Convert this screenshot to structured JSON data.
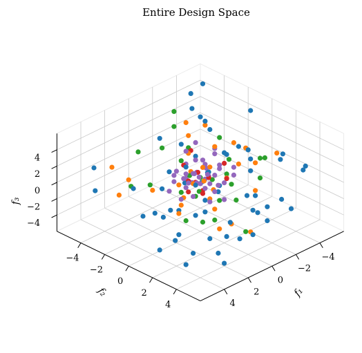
{
  "chart_data": {
    "type": "scatter",
    "title": "Entire Design Space",
    "xlabel": "f₁",
    "ylabel": "f₂",
    "zlabel": "f₃",
    "xlim": [
      -6,
      6
    ],
    "ylim": [
      -6,
      6
    ],
    "zlim": [
      -6,
      6
    ],
    "xticks": [
      "−4",
      "−2",
      "0",
      "2",
      "4"
    ],
    "yticks": [
      "−4",
      "−2",
      "0",
      "2",
      "4"
    ],
    "zticks": [
      "−4",
      "−2",
      "0",
      "2",
      "4"
    ],
    "grid": true,
    "series": [
      {
        "color": "#1f77b4",
        "points": [
          [
            -5.2,
            -1.0,
            4.4
          ],
          [
            -3.6,
            -4.4,
            5.2
          ],
          [
            -4.8,
            -4.6,
            5.4
          ],
          [
            -2.5,
            -3.2,
            5.0
          ],
          [
            -1.4,
            -1.0,
            5.8
          ],
          [
            -3.2,
            -2.4,
            2.5
          ],
          [
            -4.5,
            2.4,
            2.0
          ],
          [
            -4.4,
            4.4,
            2.0
          ],
          [
            -2.8,
            3.9,
            3.6
          ],
          [
            -1.8,
            5.0,
            0.2
          ],
          [
            -0.2,
            5.4,
            -1.0
          ],
          [
            2.3,
            5.6,
            -1.3
          ],
          [
            4.3,
            5.8,
            -1.5
          ],
          [
            5.5,
            3.4,
            -0.8
          ],
          [
            5.6,
            0.8,
            0.4
          ],
          [
            4.6,
            -1.0,
            1.8
          ],
          [
            5.4,
            -3.4,
            0.4
          ],
          [
            3.9,
            -5.0,
            1.0
          ],
          [
            -3.4,
            5.2,
            2.8
          ],
          [
            -1.4,
            4.2,
            -1.0
          ],
          [
            1.0,
            3.5,
            -1.7
          ],
          [
            3.4,
            4.2,
            -1.5
          ],
          [
            4.0,
            2.2,
            -2.0
          ],
          [
            2.2,
            1.8,
            -1.2
          ],
          [
            1.0,
            -2.4,
            4.4
          ],
          [
            -0.8,
            -2.4,
            2.4
          ],
          [
            -4.8,
            -4.8,
            1.2
          ],
          [
            0.9,
            5.3,
            1.0
          ],
          [
            3.3,
            0.8,
            -0.5
          ],
          [
            2.3,
            -0.8,
            -3.2
          ],
          [
            -3.4,
            0.6,
            2.0
          ],
          [
            -2.4,
            1.8,
            1.0
          ],
          [
            -1.8,
            0.2,
            2.5
          ],
          [
            -1.0,
            -1.4,
            1.5
          ],
          [
            0.6,
            -2.0,
            0.3
          ],
          [
            1.8,
            -1.4,
            -0.5
          ],
          [
            2.8,
            -1.0,
            -2.5
          ],
          [
            -2.0,
            2.6,
            -1.2
          ],
          [
            -1.2,
            3.6,
            -2.0
          ],
          [
            0.2,
            4.6,
            -3.0
          ],
          [
            1.6,
            3.8,
            -2.8
          ],
          [
            3.6,
            3.0,
            -4.0
          ],
          [
            5.0,
            1.6,
            -3.6
          ],
          [
            4.6,
            3.4,
            -4.4
          ],
          [
            2.6,
            4.6,
            -4.8
          ],
          [
            -4.2,
            3.4,
            -3.8
          ],
          [
            -2.5,
            1.4,
            -2.4
          ],
          [
            -5.4,
            -2.2,
            -1.0
          ],
          [
            -4.4,
            -0.2,
            -0.4
          ],
          [
            0.8,
            1.2,
            -2.2
          ],
          [
            -0.8,
            0.8,
            -0.4
          ],
          [
            0.3,
            0.4,
            0.5
          ],
          [
            0.4,
            -0.8,
            1.6
          ],
          [
            -0.4,
            0.3,
            1.2
          ],
          [
            1.0,
            0.6,
            0.8
          ],
          [
            -1.0,
            -0.4,
            0.2
          ],
          [
            0.7,
            -0.6,
            0.0
          ],
          [
            -0.5,
            1.0,
            -0.8
          ],
          [
            1.2,
            1.6,
            -0.2
          ],
          [
            2.2,
            0.4,
            -1.6
          ],
          [
            -2.8,
            -0.6,
            1.0
          ]
        ]
      },
      {
        "color": "#ff7f0e",
        "points": [
          [
            -4.4,
            -1.6,
            0.6
          ],
          [
            -1.6,
            -2.8,
            4.2
          ],
          [
            -2.6,
            -2.2,
            3.6
          ],
          [
            -1.0,
            -2.0,
            3.6
          ],
          [
            -4.6,
            1.8,
            1.6
          ],
          [
            -3.0,
            1.6,
            1.4
          ],
          [
            -1.6,
            3.0,
            0.0
          ],
          [
            0.2,
            4.4,
            -2.8
          ],
          [
            2.2,
            0.6,
            -0.8
          ],
          [
            2.4,
            -1.6,
            -0.4
          ],
          [
            3.8,
            -3.6,
            2.0
          ],
          [
            3.2,
            -2.8,
            0.6
          ],
          [
            5.2,
            -1.6,
            1.0
          ],
          [
            -2.0,
            -0.8,
            2.4
          ],
          [
            -0.6,
            -1.6,
            2.0
          ],
          [
            -0.4,
            -0.2,
            1.4
          ],
          [
            0.9,
            0.3,
            0.7
          ],
          [
            -1.2,
            1.0,
            0.4
          ],
          [
            0.6,
            1.4,
            -0.6
          ],
          [
            1.4,
            -0.4,
            0.4
          ],
          [
            -0.2,
            0.9,
            -0.4
          ],
          [
            0.1,
            -0.7,
            0.9
          ],
          [
            -0.6,
            0.2,
            1.6
          ],
          [
            0.3,
            0.6,
            0.8
          ],
          [
            1.6,
            0.2,
            -0.6
          ],
          [
            -2.2,
            1.0,
            1.4
          ],
          [
            1.0,
            2.2,
            -1.0
          ],
          [
            2.6,
            0.8,
            -1.4
          ],
          [
            -3.6,
            0.2,
            1.8
          ],
          [
            0.6,
            3.2,
            -2.4
          ],
          [
            1.8,
            3.4,
            -2.0
          ]
        ]
      },
      {
        "color": "#2ca02c",
        "points": [
          [
            -2.2,
            -4.4,
            4.0
          ],
          [
            -1.6,
            -3.8,
            3.0
          ],
          [
            -3.4,
            -1.8,
            1.8
          ],
          [
            -0.8,
            -1.8,
            2.4
          ],
          [
            -3.6,
            1.4,
            1.4
          ],
          [
            -4.4,
            1.0,
            0.6
          ],
          [
            -0.4,
            2.6,
            -0.6
          ],
          [
            0.8,
            4.6,
            -2.2
          ],
          [
            1.8,
            3.0,
            -1.2
          ],
          [
            3.8,
            -2.0,
            0.8
          ],
          [
            2.6,
            -1.6,
            0.4
          ],
          [
            1.8,
            -3.4,
            2.6
          ],
          [
            0.6,
            -2.6,
            2.8
          ],
          [
            3.2,
            2.0,
            -1.0
          ],
          [
            -1.4,
            0.8,
            0.6
          ],
          [
            0.8,
            0.4,
            0.6
          ],
          [
            0.0,
            0.0,
            0.6
          ],
          [
            0.5,
            -0.4,
            0.9
          ],
          [
            -0.6,
            0.4,
            0.2
          ],
          [
            0.9,
            0.8,
            0.1
          ],
          [
            1.4,
            1.0,
            0.0
          ],
          [
            -1.0,
            1.6,
            0.2
          ],
          [
            0.2,
            1.8,
            -0.8
          ],
          [
            1.8,
            0.2,
            0.2
          ],
          [
            -2.2,
            0.2,
            1.4
          ],
          [
            -2.6,
            2.4,
            0.4
          ],
          [
            2.2,
            2.4,
            -1.6
          ],
          [
            0.2,
            -1.4,
            1.8
          ]
        ]
      },
      {
        "color": "#d62728",
        "points": [
          [
            -0.8,
            -1.6,
            2.2
          ],
          [
            0.2,
            -1.2,
            1.4
          ],
          [
            -1.8,
            0.2,
            1.2
          ],
          [
            0.8,
            -0.2,
            0.6
          ],
          [
            -0.2,
            0.5,
            0.8
          ],
          [
            0.4,
            0.0,
            0.3
          ],
          [
            1.0,
            1.2,
            0.2
          ],
          [
            -1.0,
            1.2,
            0.6
          ],
          [
            -0.2,
            -0.4,
            0.8
          ],
          [
            0.6,
            0.8,
            0.0
          ],
          [
            1.6,
            0.6,
            0.4
          ]
        ]
      },
      {
        "color": "#9467bd",
        "points": [
          [
            -1.4,
            -1.8,
            2.6
          ],
          [
            -0.6,
            -1.0,
            1.6
          ],
          [
            -1.6,
            0.0,
            1.0
          ],
          [
            -0.8,
            0.4,
            0.6
          ],
          [
            0.2,
            -0.3,
            1.0
          ],
          [
            0.4,
            0.4,
            0.4
          ],
          [
            -0.3,
            -0.6,
            0.6
          ],
          [
            0.8,
            -0.6,
            0.6
          ],
          [
            1.2,
            0.0,
            0.2
          ],
          [
            -1.2,
            -0.8,
            0.8
          ],
          [
            0.0,
            0.8,
            0.4
          ],
          [
            0.6,
            1.0,
            0.4
          ],
          [
            -0.5,
            1.0,
            0.0
          ],
          [
            1.2,
            -1.0,
            1.0
          ],
          [
            0.0,
            -1.2,
            1.4
          ],
          [
            -1.0,
            0.6,
            1.4
          ],
          [
            0.3,
            0.2,
            1.0
          ],
          [
            -0.2,
            0.2,
            0.4
          ],
          [
            0.5,
            -0.2,
            0.2
          ],
          [
            -0.7,
            -0.2,
            1.1
          ],
          [
            0.9,
            0.6,
            1.0
          ],
          [
            1.6,
            -0.6,
            0.8
          ],
          [
            -1.8,
            -0.6,
            1.8
          ],
          [
            -1.4,
            1.4,
            0.9
          ],
          [
            0.2,
            1.4,
            0.0
          ],
          [
            1.0,
            1.8,
            -0.4
          ],
          [
            2.2,
            -0.4,
            0.2
          ],
          [
            -0.4,
            -1.6,
            2.4
          ],
          [
            -2.4,
            -1.2,
            1.6
          ],
          [
            1.8,
            1.2,
            0.4
          ],
          [
            0.6,
            -1.4,
            0.8
          ],
          [
            -0.9,
            -0.2,
            0.0
          ],
          [
            0.0,
            0.6,
            1.4
          ],
          [
            0.4,
            -0.8,
            0.2
          ],
          [
            1.4,
            0.4,
            1.2
          ],
          [
            -2.0,
            0.8,
            1.0
          ],
          [
            0.2,
            2.2,
            -0.4
          ],
          [
            1.0,
            -0.2,
            1.6
          ],
          [
            -0.4,
            1.6,
            0.8
          ],
          [
            2.4,
            0.8,
            0.2
          ],
          [
            -1.6,
            -1.4,
            0.6
          ],
          [
            0.8,
            0.2,
            1.8
          ]
        ]
      }
    ]
  }
}
